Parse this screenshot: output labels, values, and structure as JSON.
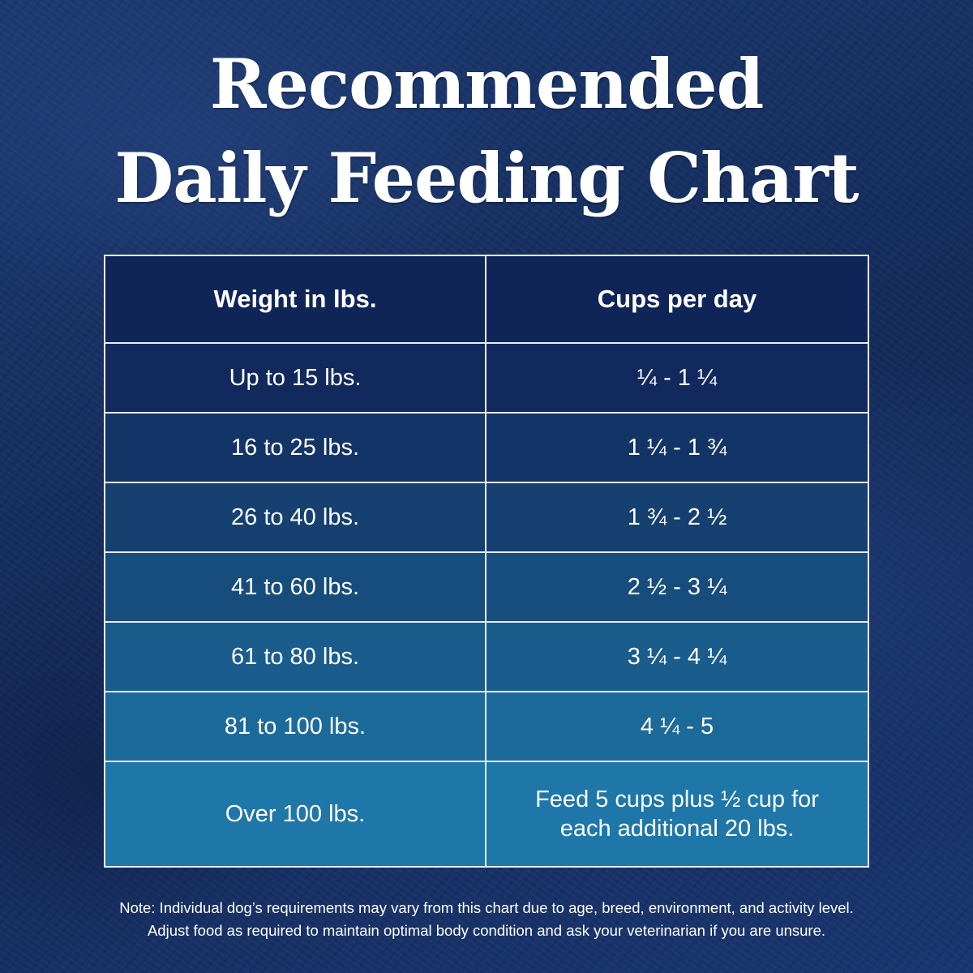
{
  "title": {
    "line1": "Recommended",
    "line2": "Daily Feeding Chart"
  },
  "table": {
    "headers": [
      "Weight in lbs.",
      "Cups per day"
    ],
    "rows": [
      {
        "weight": "Up to 15 lbs.",
        "cups": "¼ - 1 ¼"
      },
      {
        "weight": "16 to 25 lbs.",
        "cups": "1 ¼ - 1 ¾"
      },
      {
        "weight": "26 to 40 lbs.",
        "cups": "1 ¾ - 2 ½"
      },
      {
        "weight": "41 to 60 lbs.",
        "cups": "2 ½ - 3 ¼"
      },
      {
        "weight": "61 to 80 lbs.",
        "cups": "3 ¼ - 4 ¼"
      },
      {
        "weight": "81 to 100 lbs.",
        "cups": "4 ¼ - 5"
      },
      {
        "weight": "Over 100 lbs.",
        "cups_line1": "Feed 5 cups plus ½ cup for",
        "cups_line2": "each additional 20 lbs."
      }
    ]
  },
  "note": {
    "line1": "Note: Individual dog’s requirements may vary from this chart due to age, breed, environment, and activity level.",
    "line2": "Adjust food as required to maintain optimal body condition and ask your veterinarian if you are unsure."
  },
  "colors": {
    "background": "#17305f",
    "header_row": "#0f2557",
    "row_gradient_start": "#11295d",
    "row_gradient_end": "#1e77a8",
    "text": "#ffffff",
    "border": "#e6ecf5"
  }
}
